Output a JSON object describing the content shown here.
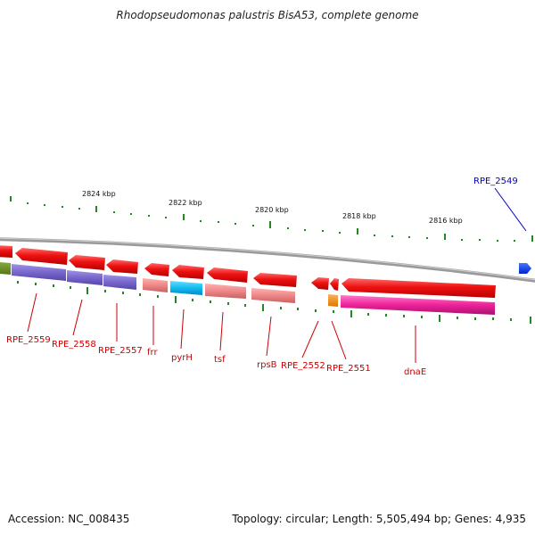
{
  "title": "Rhodopseudomonas palustris BisA53, complete genome",
  "accession": "Accession: NC_008435",
  "summary": "Topology: circular; Length: 5,505,494 bp; Genes: 4,935",
  "kbp_labels": [
    "2824 kbp",
    "2822 kbp",
    "2820 kbp",
    "2818 kbp",
    "2816 kbp"
  ],
  "gene_labels": [
    {
      "text": "RPE_2559",
      "color": "#cc0000"
    },
    {
      "text": "RPE_2558",
      "color": "#cc0000"
    },
    {
      "text": "RPE_2557",
      "color": "#cc0000"
    },
    {
      "text": "frr",
      "color": "#cc0000"
    },
    {
      "text": "pyrH",
      "color": "#cc0000"
    },
    {
      "text": "tsf",
      "color": "#cc0000"
    },
    {
      "text": "rpsB",
      "color": "#cc0000"
    },
    {
      "text": "RPE_2552",
      "color": "#cc0000"
    },
    {
      "text": "RPE_2551",
      "color": "#cc0000"
    },
    {
      "text": "dnaE",
      "color": "#cc0000"
    },
    {
      "text": "RPE_2549",
      "color": "#0000cc"
    }
  ],
  "colors": {
    "cds": "#ee1111",
    "gene_blue": "#0033ee",
    "rna_purple": "#7766cc",
    "rna_pink": "#ee8888",
    "rna_cyan": "#11bbee",
    "rna_magenta": "#dd2299",
    "rna_orange": "#ee8811",
    "rna_olive": "#668822",
    "backbone": "#888888",
    "tick": "#228822"
  }
}
